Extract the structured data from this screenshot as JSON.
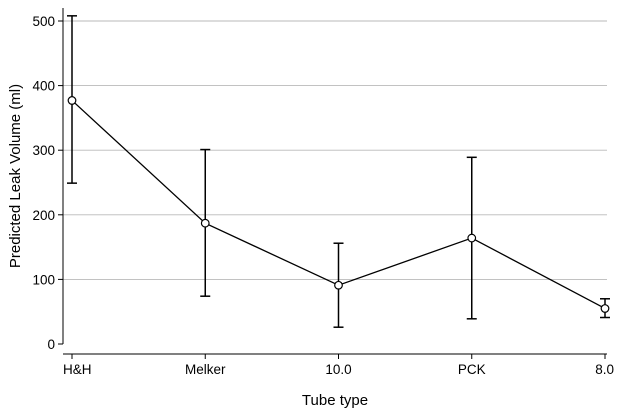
{
  "chart_data": {
    "type": "line",
    "categories": [
      "H&H",
      "Melker",
      "10.0",
      "PCK",
      "8.0"
    ],
    "series": [
      {
        "values": [
          377,
          187,
          91,
          164,
          55
        ],
        "ci_lower": [
          249,
          74,
          26,
          39,
          41
        ],
        "ci_upper": [
          508,
          301,
          156,
          289,
          70
        ]
      }
    ],
    "xlabel": "Tube type",
    "ylabel": "Predicted Leak Volume (ml)",
    "ylim": [
      0,
      500
    ],
    "yticks": [
      0,
      100,
      200,
      300,
      400,
      500
    ],
    "grid": true,
    "legend": "none"
  }
}
